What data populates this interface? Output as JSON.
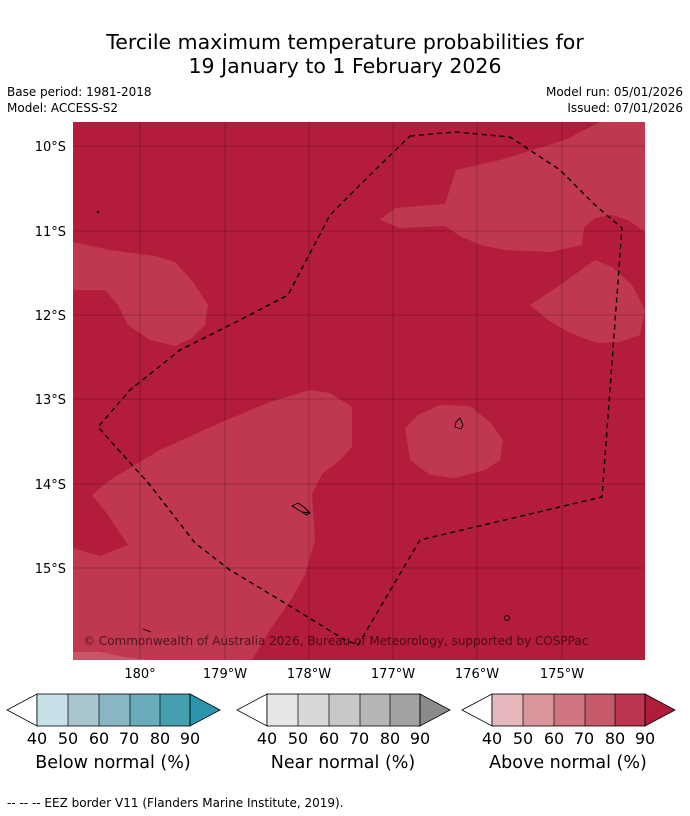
{
  "title_line1": "Tercile maximum temperature probabilities for",
  "title_line2": "19 January to 1 February 2026",
  "meta": {
    "base_period": "Base period: 1981-2018",
    "model": "Model: ACCESS-S2",
    "model_run": "Model run: 05/01/2026",
    "issued": "Issued: 07/01/2026"
  },
  "map": {
    "lat_labels": [
      "10°S",
      "11°S",
      "12°S",
      "13°S",
      "14°S",
      "15°S"
    ],
    "lon_labels": [
      "180°",
      "179°W",
      "178°W",
      "177°W",
      "176°W",
      "175°W"
    ],
    "copyright": "© Commonwealth of Australia 2026, Bureau of Meteorology, supported by COSPPac",
    "colors": {
      "above_80": "#b31c3a",
      "above_70": "#bf3850",
      "above_60": "#c95668",
      "eez_line": "#000000"
    }
  },
  "colorbars": [
    {
      "label": "Below normal (%)",
      "ticks": [
        "40",
        "50",
        "60",
        "70",
        "80",
        "90"
      ],
      "colors": [
        "#c8e0e8",
        "#a6c5cd",
        "#88b6c2",
        "#6aacbb",
        "#44a0b0",
        "#2a94aa"
      ]
    },
    {
      "label": "Near normal (%)",
      "ticks": [
        "40",
        "50",
        "60",
        "70",
        "80",
        "90"
      ],
      "colors": [
        "#e6e6e6",
        "#d8d8d8",
        "#c8c8c8",
        "#b6b6b6",
        "#a2a2a2",
        "#8a8a8a"
      ]
    },
    {
      "label": "Above normal (%)",
      "ticks": [
        "40",
        "50",
        "60",
        "70",
        "80",
        "90"
      ],
      "colors": [
        "#e4b8bc",
        "#d9949c",
        "#cf7680",
        "#c65a68",
        "#bc3450",
        "#b11c3a"
      ]
    }
  ],
  "footer": "--  --  -- EEZ border V11 (Flanders Marine Institute, 2019)."
}
